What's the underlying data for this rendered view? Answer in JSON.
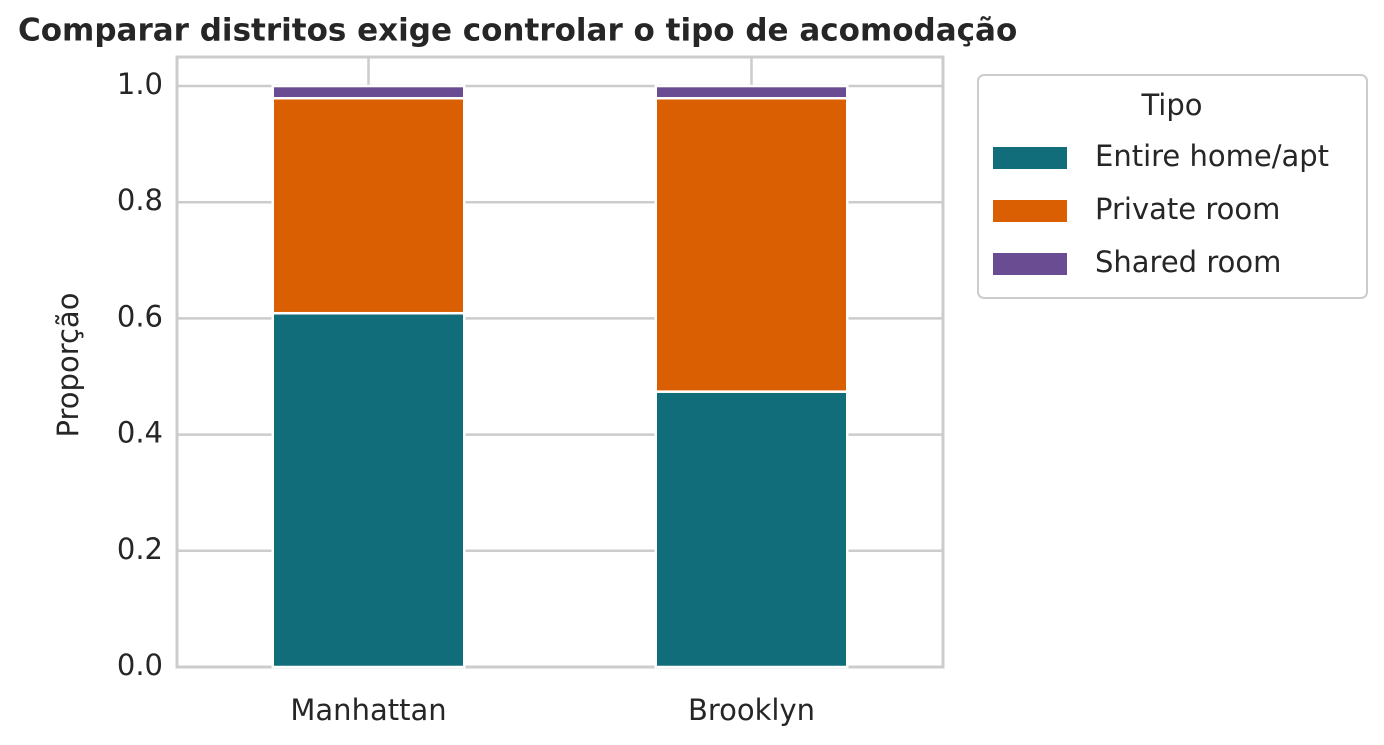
{
  "chart_data": {
    "type": "stacked_bar",
    "title": "Comparar distritos exige controlar o tipo de acomodação",
    "y_label": "Proporção",
    "categories": [
      "Manhattan",
      "Brooklyn"
    ],
    "series": [
      {
        "name": "Entire home/apt",
        "color": "#126d7a",
        "values": [
          0.609,
          0.474
        ]
      },
      {
        "name": "Private room",
        "color": "#d95f02",
        "values": [
          0.37,
          0.505
        ]
      },
      {
        "name": "Shared room",
        "color": "#6a4c93",
        "values": [
          0.021,
          0.021
        ]
      }
    ],
    "ylim": [
      0,
      1.05
    ],
    "yticks": [
      {
        "value": 0,
        "label": "0.0"
      },
      0.2,
      0.4,
      0.6,
      0.8,
      {
        "value": 1,
        "label": "1.0"
      }
    ],
    "grid": true,
    "legend_title": "Tipo",
    "legend_position": "outside-right"
  }
}
